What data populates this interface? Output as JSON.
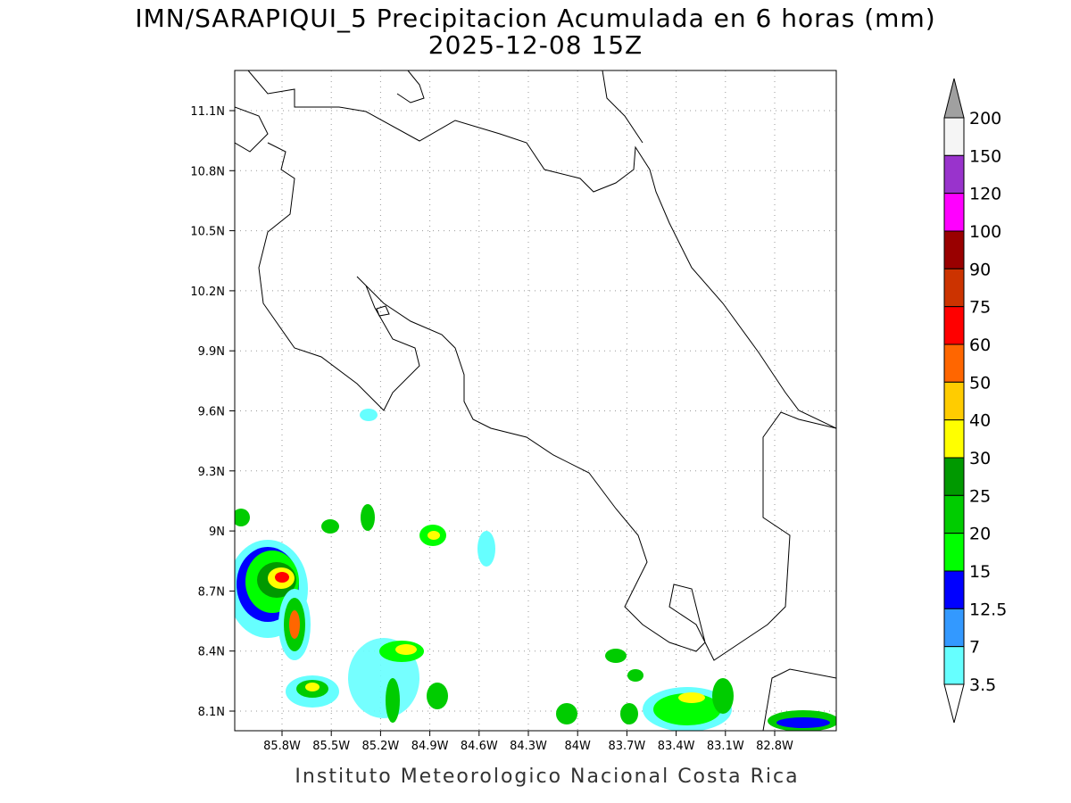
{
  "title": "IMN/SARAPIQUI_5 Precipitacion Acumulada en 6 horas (mm)",
  "subtitle": "2025-12-08 15Z",
  "footer": "Instituto Meteorologico Nacional Costa Rica",
  "lat_labels": [
    "11.1N",
    "10.8N",
    "10.5N",
    "10.2N",
    "9.9N",
    "9.6N",
    "9.3N",
    "9N",
    "8.7N",
    "8.4N",
    "8.1N"
  ],
  "lon_labels": [
    "85.8W",
    "85.5W",
    "85.2W",
    "84.9W",
    "84.6W",
    "84.3W",
    "84W",
    "83.7W",
    "83.4W",
    "83.1W",
    "82.8W"
  ],
  "legend": {
    "labels": [
      "200",
      "150",
      "120",
      "100",
      "90",
      "75",
      "60",
      "50",
      "40",
      "30",
      "25",
      "20",
      "15",
      "12.5",
      "7",
      "3.5"
    ],
    "colors": [
      "#f5f5f5",
      "#9933cc",
      "#ff00ff",
      "#990000",
      "#cc3300",
      "#ff0000",
      "#ff6600",
      "#ffcc00",
      "#ffff00",
      "#009900",
      "#00cc00",
      "#00ff00",
      "#0000ff",
      "#3399ff",
      "#66ffff"
    ],
    "over_color": "#a0a0a0",
    "under_color": "#ffffff"
  }
}
